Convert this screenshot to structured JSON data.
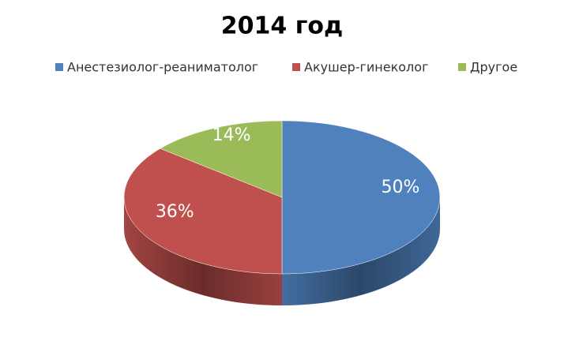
{
  "chart_data": {
    "type": "pie3d",
    "title": "2014 год",
    "categories": [
      "Анестезиолог-реаниматолог",
      "Акушер-гинеколог",
      "Другое"
    ],
    "values": [
      50,
      36,
      14
    ],
    "value_labels": [
      "50%",
      "36%",
      "14%"
    ],
    "colors": [
      "#4f81bd",
      "#c0504d",
      "#9bbb59"
    ],
    "legend": "top"
  }
}
